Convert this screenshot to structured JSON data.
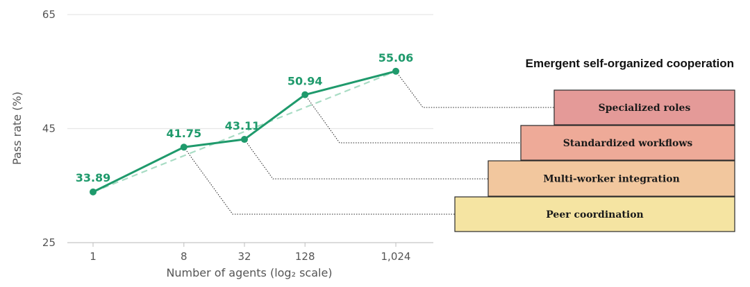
{
  "chart_data": {
    "type": "line",
    "xlabel": "Number of agents (log₂ scale)",
    "ylabel": "Pass rate (%)",
    "x_scale": "log2",
    "x": [
      1,
      8,
      32,
      128,
      1024
    ],
    "x_tick_labels": [
      "1",
      "8",
      "32",
      "128",
      "1,024"
    ],
    "y_ticks": [
      25,
      45,
      65
    ],
    "ylim": [
      25,
      65
    ],
    "grid": "horizontal",
    "series": [
      {
        "values": [
          33.89,
          41.75,
          43.11,
          50.94,
          55.06
        ],
        "labels": [
          "33.89",
          "41.75",
          "43.11",
          "50.94",
          "55.06"
        ],
        "style": "solid",
        "color": "#1f9a6c"
      }
    ],
    "trend_line": {
      "style": "dashed",
      "color": "#a8dcc4",
      "from": [
        1,
        33.89
      ],
      "to": [
        1024,
        55.06
      ]
    }
  },
  "annotation": {
    "title": "Emergent self-organized cooperation",
    "levels": [
      {
        "label": "Specialized roles",
        "color": "#e49a98",
        "linked_x": 1024
      },
      {
        "label": "Standardized workflows",
        "color": "#eeaa98",
        "linked_x": 128
      },
      {
        "label": "Multi-worker integration",
        "color": "#f2c79e",
        "linked_x": 32
      },
      {
        "label": "Peer coordination",
        "color": "#f5e4a2",
        "linked_x": 8
      }
    ]
  }
}
